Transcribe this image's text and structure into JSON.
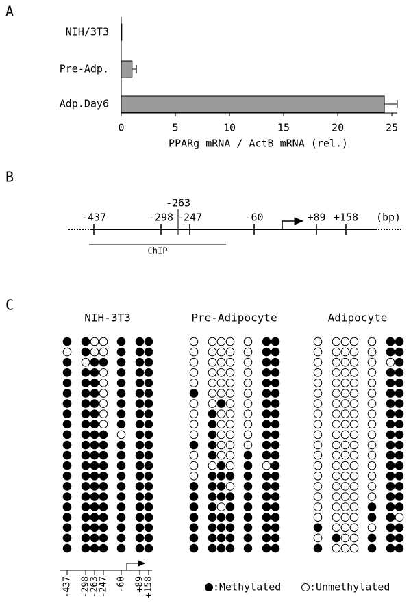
{
  "panel_labels": [
    "A",
    "B",
    "C"
  ],
  "chart_data": {
    "type": "bar",
    "orientation": "horizontal",
    "categories": [
      "NIH/3T3",
      "Pre-Adp.",
      "Adp.Day6"
    ],
    "values": [
      0.05,
      1.0,
      24.3
    ],
    "errors": [
      0,
      0.4,
      1.2
    ],
    "color": "#9a9a9a",
    "xlim": [
      0,
      25.5
    ],
    "xticks": [
      0,
      5,
      10,
      15,
      20,
      25
    ],
    "xlabel": "PPARg mRNA / ActB mRNA (rel.)"
  },
  "promoter": {
    "sites": [
      "-437",
      "-298",
      "-263",
      "-247",
      "-60",
      "+89",
      "+158"
    ],
    "unit": "(bp)",
    "chip_label": "ChIP"
  },
  "methylation": {
    "groups": [
      {
        "name": "NIH-3T3",
        "rows": [
          [
            1,
            1,
            0,
            0,
            1,
            1,
            1
          ],
          [
            0,
            1,
            0,
            0,
            1,
            1,
            1
          ],
          [
            1,
            0,
            1,
            1,
            1,
            1,
            1
          ],
          [
            1,
            1,
            1,
            0,
            1,
            1,
            1
          ],
          [
            1,
            1,
            1,
            0,
            1,
            1,
            1
          ],
          [
            1,
            1,
            1,
            0,
            1,
            1,
            1
          ],
          [
            1,
            1,
            1,
            0,
            1,
            1,
            1
          ],
          [
            1,
            1,
            1,
            0,
            1,
            1,
            1
          ],
          [
            1,
            1,
            1,
            0,
            1,
            1,
            1
          ],
          [
            1,
            1,
            1,
            1,
            0,
            1,
            1
          ],
          [
            1,
            1,
            1,
            1,
            1,
            1,
            1
          ],
          [
            1,
            1,
            1,
            1,
            1,
            1,
            1
          ],
          [
            1,
            1,
            1,
            1,
            1,
            1,
            1
          ],
          [
            1,
            1,
            1,
            1,
            1,
            1,
            1
          ],
          [
            1,
            1,
            1,
            1,
            1,
            1,
            1
          ],
          [
            1,
            1,
            1,
            1,
            1,
            1,
            1
          ],
          [
            1,
            1,
            1,
            1,
            1,
            1,
            1
          ],
          [
            1,
            1,
            1,
            1,
            1,
            1,
            1
          ],
          [
            1,
            1,
            1,
            1,
            1,
            1,
            1
          ],
          [
            1,
            1,
            1,
            1,
            1,
            1,
            1
          ],
          [
            1,
            1,
            1,
            1,
            1,
            1,
            1
          ]
        ]
      },
      {
        "name": "Pre-Adipocyte",
        "rows": [
          [
            0,
            0,
            0,
            0,
            0,
            1,
            1
          ],
          [
            0,
            0,
            0,
            0,
            0,
            1,
            1
          ],
          [
            0,
            0,
            0,
            0,
            0,
            1,
            1
          ],
          [
            0,
            0,
            0,
            0,
            0,
            1,
            1
          ],
          [
            0,
            0,
            0,
            0,
            0,
            1,
            1
          ],
          [
            1,
            0,
            0,
            0,
            0,
            1,
            1
          ],
          [
            0,
            0,
            1,
            0,
            0,
            1,
            1
          ],
          [
            0,
            1,
            0,
            0,
            0,
            1,
            1
          ],
          [
            0,
            1,
            0,
            0,
            0,
            1,
            1
          ],
          [
            0,
            1,
            0,
            0,
            0,
            1,
            1
          ],
          [
            1,
            1,
            0,
            0,
            0,
            1,
            1
          ],
          [
            0,
            1,
            0,
            0,
            1,
            1,
            1
          ],
          [
            0,
            0,
            1,
            0,
            1,
            0,
            1
          ],
          [
            0,
            1,
            1,
            1,
            1,
            1,
            1
          ],
          [
            1,
            1,
            1,
            0,
            1,
            1,
            1
          ],
          [
            1,
            1,
            1,
            1,
            1,
            1,
            1
          ],
          [
            1,
            1,
            0,
            1,
            1,
            1,
            1
          ],
          [
            1,
            1,
            1,
            1,
            1,
            1,
            1
          ],
          [
            1,
            1,
            1,
            1,
            1,
            1,
            1
          ],
          [
            1,
            1,
            1,
            1,
            1,
            1,
            1
          ],
          [
            1,
            1,
            1,
            1,
            1,
            1,
            1
          ]
        ]
      },
      {
        "name": "Adipocyte",
        "rows": [
          [
            0,
            0,
            0,
            0,
            0,
            1,
            1
          ],
          [
            0,
            0,
            0,
            0,
            0,
            1,
            1
          ],
          [
            0,
            0,
            0,
            0,
            0,
            0,
            1
          ],
          [
            0,
            0,
            0,
            0,
            0,
            1,
            1
          ],
          [
            0,
            0,
            0,
            0,
            0,
            1,
            1
          ],
          [
            0,
            0,
            0,
            0,
            0,
            1,
            1
          ],
          [
            0,
            0,
            0,
            0,
            0,
            1,
            1
          ],
          [
            0,
            0,
            0,
            0,
            0,
            1,
            1
          ],
          [
            0,
            0,
            0,
            0,
            0,
            1,
            1
          ],
          [
            0,
            0,
            0,
            0,
            0,
            1,
            1
          ],
          [
            0,
            0,
            0,
            0,
            0,
            1,
            1
          ],
          [
            0,
            0,
            0,
            0,
            0,
            1,
            1
          ],
          [
            0,
            0,
            0,
            0,
            0,
            1,
            1
          ],
          [
            0,
            0,
            0,
            0,
            0,
            1,
            1
          ],
          [
            0,
            0,
            0,
            0,
            0,
            1,
            1
          ],
          [
            0,
            0,
            0,
            0,
            0,
            1,
            1
          ],
          [
            0,
            0,
            0,
            0,
            1,
            1,
            1
          ],
          [
            0,
            0,
            0,
            0,
            1,
            1,
            0
          ],
          [
            1,
            0,
            0,
            0,
            0,
            1,
            1
          ],
          [
            0,
            1,
            0,
            0,
            1,
            1,
            1
          ],
          [
            1,
            0,
            0,
            0,
            1,
            1,
            1
          ]
        ]
      }
    ],
    "legend": [
      ":Methylated",
      ":Unmethylated"
    ]
  }
}
